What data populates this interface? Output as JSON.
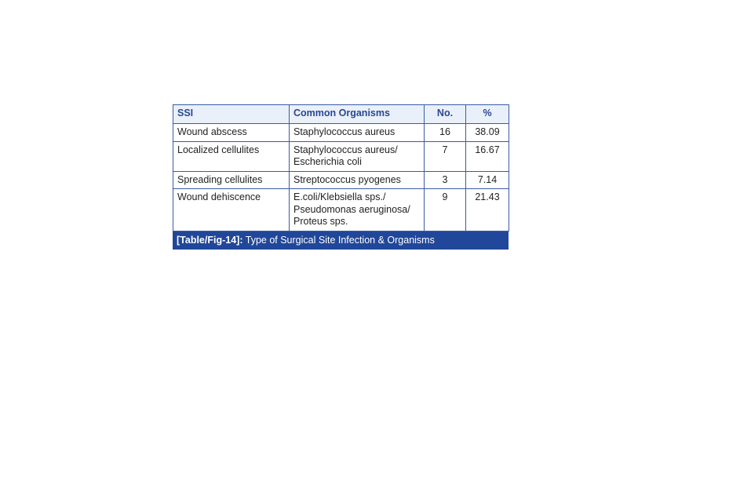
{
  "table": {
    "headers": [
      "SSI",
      "Common Organisms",
      "No.",
      "%"
    ],
    "rows": [
      {
        "ssi": "Wound abscess",
        "organisms": [
          "Staphylococcus aureus"
        ],
        "no": "16",
        "pct": "38.09"
      },
      {
        "ssi": "Localized cellulites",
        "organisms": [
          "Staphylococcus aureus/",
          "Escherichia coli"
        ],
        "no": "7",
        "pct": "16.67"
      },
      {
        "ssi": "Spreading cellulites",
        "organisms": [
          "Streptococcus pyogenes"
        ],
        "no": "3",
        "pct": "7.14"
      },
      {
        "ssi": "Wound dehiscence",
        "organisms": [
          "E.coli/Klebsiella sps./",
          "Pseudomonas aeruginosa/",
          "Proteus sps."
        ],
        "no": "9",
        "pct": "21.43"
      }
    ]
  },
  "caption": {
    "label": "[Table/Fig-14]:",
    "text": " Type of Surgical Site Infection & Organisms"
  }
}
